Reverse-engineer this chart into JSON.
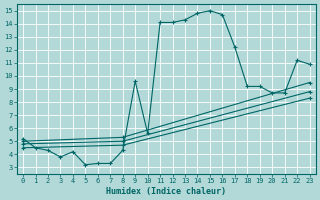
{
  "xlabel": "Humidex (Indice chaleur)",
  "bg_color": "#b2d8d8",
  "grid_color": "#c8e8e8",
  "line_color": "#006666",
  "xlim": [
    -0.5,
    23.5
  ],
  "ylim": [
    2.5,
    15.5
  ],
  "xticks": [
    0,
    1,
    2,
    3,
    4,
    5,
    6,
    7,
    8,
    9,
    10,
    11,
    12,
    13,
    14,
    15,
    16,
    17,
    18,
    19,
    20,
    21,
    22,
    23
  ],
  "yticks": [
    3,
    4,
    5,
    6,
    7,
    8,
    9,
    10,
    11,
    12,
    13,
    14,
    15
  ],
  "series": [
    {
      "x": [
        0,
        1,
        2,
        3,
        4,
        5,
        6,
        7,
        8,
        9,
        10,
        11,
        12,
        13,
        14,
        15,
        16,
        17,
        18,
        19,
        20,
        21,
        22,
        23
      ],
      "y": [
        5.2,
        4.5,
        4.3,
        3.8,
        4.2,
        3.2,
        3.3,
        3.3,
        4.3,
        9.6,
        5.6,
        14.1,
        14.1,
        14.3,
        14.8,
        15.0,
        14.7,
        12.2,
        9.2,
        9.2,
        8.7,
        8.7,
        11.2,
        10.9
      ],
      "marker": "+",
      "markersize": 3.0,
      "linewidth": 0.8,
      "linestyle": "-"
    },
    {
      "x": [
        0,
        8,
        23
      ],
      "y": [
        5.0,
        5.3,
        9.5
      ],
      "marker": "+",
      "markersize": 2.5,
      "linewidth": 0.8,
      "linestyle": "-"
    },
    {
      "x": [
        0,
        8,
        23
      ],
      "y": [
        4.8,
        5.0,
        8.8
      ],
      "marker": "+",
      "markersize": 2.5,
      "linewidth": 0.8,
      "linestyle": "-"
    },
    {
      "x": [
        0,
        8,
        23
      ],
      "y": [
        4.5,
        4.7,
        8.3
      ],
      "marker": "+",
      "markersize": 2.5,
      "linewidth": 0.8,
      "linestyle": "-"
    }
  ]
}
